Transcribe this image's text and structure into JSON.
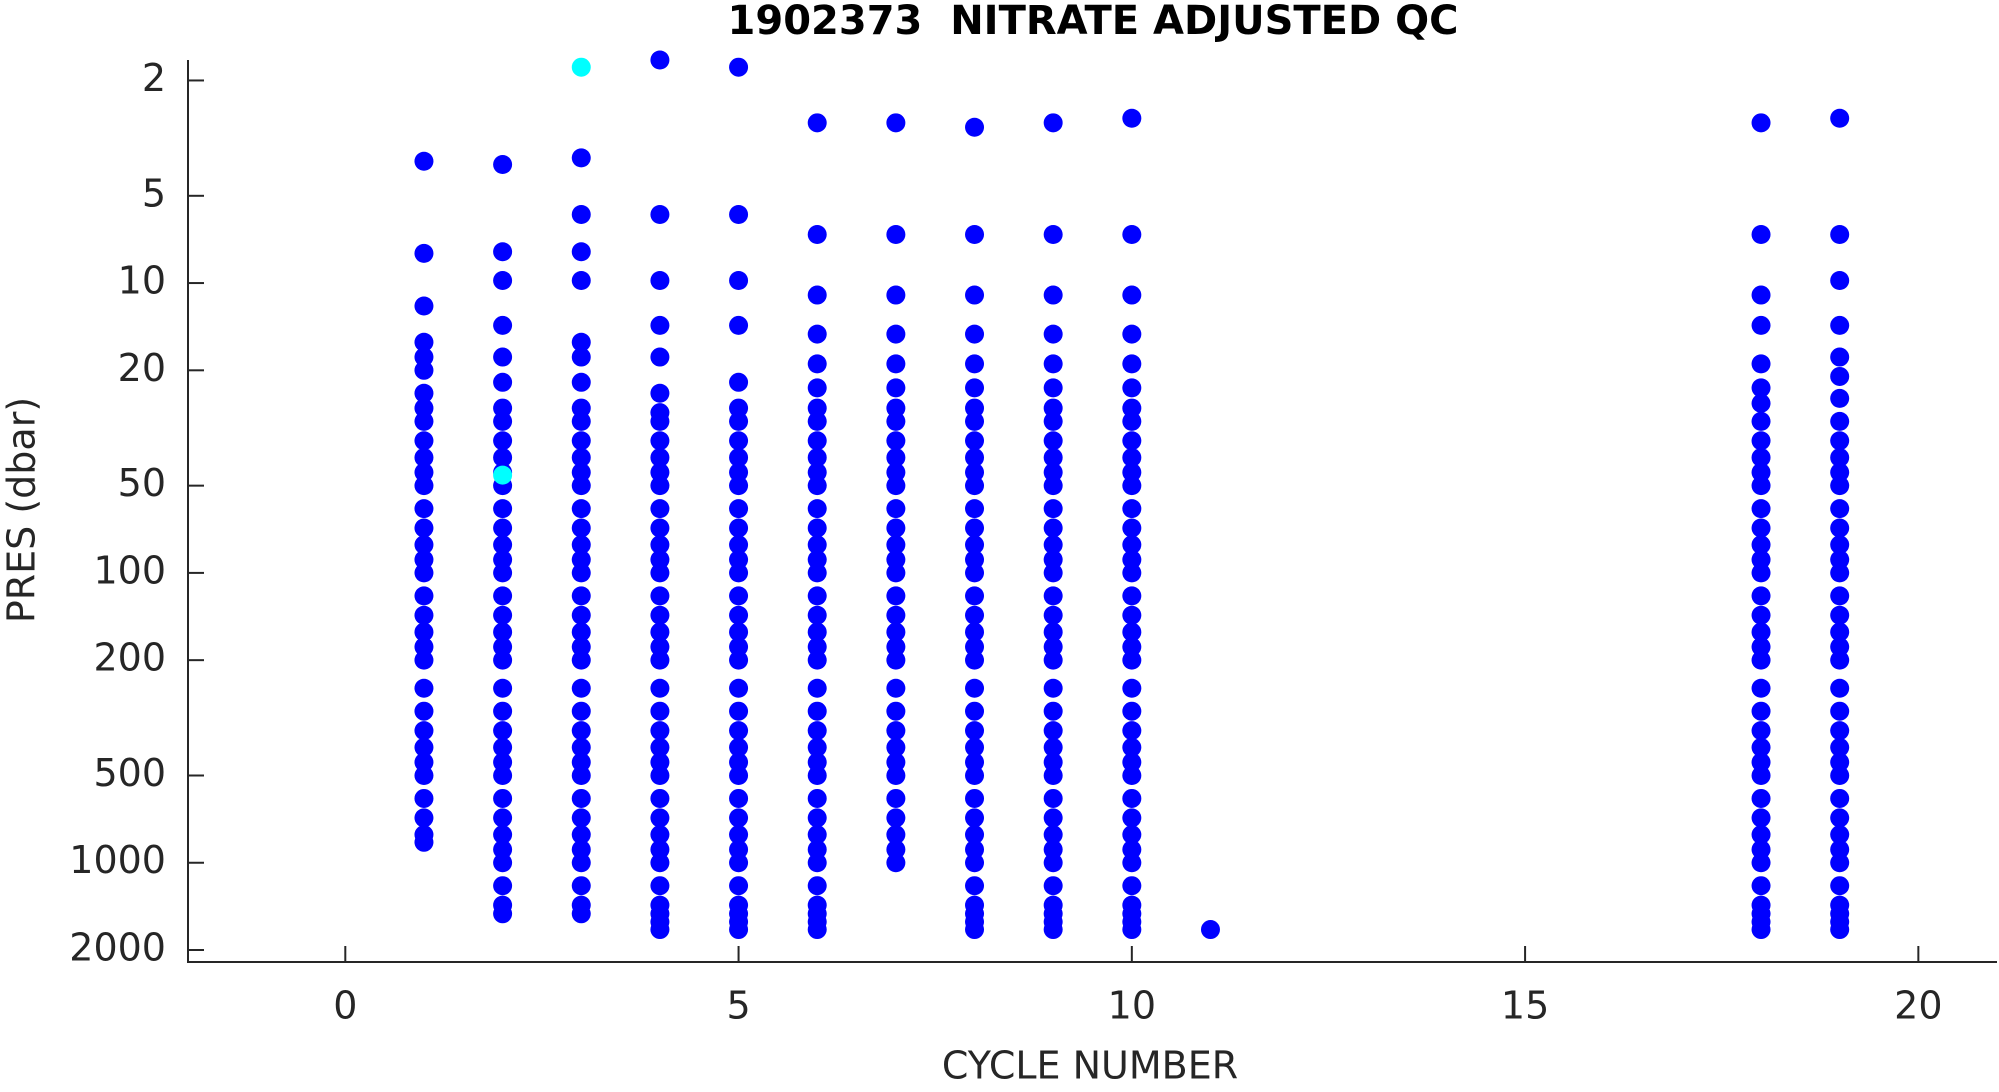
{
  "chart_data": {
    "type": "scatter",
    "title": "1902373  NITRATE ADJUSTED QC",
    "x_label": "CYCLE NUMBER",
    "y_label": "PRES (dbar)",
    "xlim": [
      -2,
      21
    ],
    "xticks": [
      0,
      5,
      10,
      15,
      20
    ],
    "ylim": [
      1.7,
      2200
    ],
    "yticks": [
      2,
      5,
      10,
      20,
      50,
      100,
      200,
      500,
      1000,
      2000
    ],
    "log_y": true,
    "y_reversed": true,
    "grid": false,
    "series": [
      {
        "color": "#0000ff",
        "x": [
          1,
          1,
          1,
          1,
          1,
          1,
          1,
          1,
          1,
          1,
          1,
          1,
          1,
          1,
          1,
          1,
          1,
          1,
          1,
          1,
          1,
          1,
          1,
          1,
          1,
          1,
          1,
          1,
          1,
          1,
          1,
          1,
          1
        ],
        "values": [
          3.8,
          7.9,
          12,
          16,
          18,
          20,
          24,
          27,
          30,
          35,
          40,
          45,
          50,
          60,
          70,
          80,
          90,
          100,
          120,
          140,
          160,
          180,
          200,
          250,
          300,
          350,
          400,
          450,
          500,
          600,
          700,
          800,
          850
        ]
      },
      {
        "color": "#0000ff",
        "x": [
          2,
          2,
          2,
          2,
          2,
          2,
          2,
          2,
          2,
          2,
          2,
          2,
          2,
          2,
          2,
          2,
          2,
          2,
          2,
          2,
          2,
          2,
          2,
          2,
          2,
          2,
          2,
          2,
          2,
          2,
          2,
          2,
          2,
          2,
          2,
          2
        ],
        "values": [
          3.9,
          7.8,
          9.8,
          14,
          18,
          22,
          27,
          30,
          35,
          40,
          45,
          50,
          60,
          70,
          80,
          90,
          100,
          120,
          140,
          160,
          180,
          200,
          250,
          300,
          350,
          400,
          450,
          500,
          600,
          700,
          800,
          900,
          1000,
          1200,
          1400,
          1500
        ]
      },
      {
        "color": "#0000ff",
        "x": [
          3,
          3,
          3,
          3,
          3,
          3,
          3,
          3,
          3,
          3,
          3,
          3,
          3,
          3,
          3,
          3,
          3,
          3,
          3,
          3,
          3,
          3,
          3,
          3,
          3,
          3,
          3,
          3,
          3,
          3,
          3,
          3,
          3,
          3,
          3,
          3,
          3
        ],
        "values": [
          3.7,
          5.8,
          7.8,
          9.8,
          16,
          18,
          22,
          27,
          30,
          35,
          40,
          45,
          50,
          60,
          70,
          80,
          90,
          100,
          120,
          140,
          160,
          180,
          200,
          250,
          300,
          350,
          400,
          450,
          500,
          600,
          700,
          800,
          900,
          1000,
          1200,
          1400,
          1500
        ]
      },
      {
        "color": "#0000ff",
        "x": [
          4,
          4,
          4,
          4,
          4,
          4,
          4,
          4,
          4,
          4,
          4,
          4,
          4,
          4,
          4,
          4,
          4,
          4,
          4,
          4,
          4,
          4,
          4,
          4,
          4,
          4,
          4,
          4,
          4,
          4,
          4,
          4,
          4,
          4,
          4,
          4,
          4,
          4
        ],
        "values": [
          1.7,
          5.8,
          9.8,
          14,
          18,
          24,
          28,
          30,
          35,
          40,
          45,
          50,
          60,
          70,
          80,
          90,
          100,
          120,
          140,
          160,
          180,
          200,
          250,
          300,
          350,
          400,
          450,
          500,
          600,
          700,
          800,
          900,
          1000,
          1200,
          1400,
          1500,
          1600,
          1700
        ]
      },
      {
        "color": "#0000ff",
        "x": [
          5,
          5,
          5,
          5,
          5,
          5,
          5,
          5,
          5,
          5,
          5,
          5,
          5,
          5,
          5,
          5,
          5,
          5,
          5,
          5,
          5,
          5,
          5,
          5,
          5,
          5,
          5,
          5,
          5,
          5,
          5,
          5,
          5,
          5,
          5,
          5,
          5
        ],
        "values": [
          1.8,
          5.8,
          9.8,
          14,
          22,
          27,
          30,
          35,
          40,
          45,
          50,
          60,
          70,
          80,
          90,
          100,
          120,
          140,
          160,
          180,
          200,
          250,
          300,
          350,
          400,
          450,
          500,
          600,
          700,
          800,
          900,
          1000,
          1200,
          1400,
          1500,
          1600,
          1700
        ]
      },
      {
        "color": "#0000ff",
        "x": [
          6,
          6,
          6,
          6,
          6,
          6,
          6,
          6,
          6,
          6,
          6,
          6,
          6,
          6,
          6,
          6,
          6,
          6,
          6,
          6,
          6,
          6,
          6,
          6,
          6,
          6,
          6,
          6,
          6,
          6,
          6,
          6,
          6,
          6,
          6,
          6,
          6,
          6
        ],
        "values": [
          2.8,
          6.8,
          11,
          15,
          19,
          23,
          27,
          30,
          35,
          40,
          45,
          50,
          60,
          70,
          80,
          90,
          100,
          120,
          140,
          160,
          180,
          200,
          250,
          300,
          350,
          400,
          450,
          500,
          600,
          700,
          800,
          900,
          1000,
          1200,
          1400,
          1500,
          1600,
          1700
        ]
      },
      {
        "color": "#0000ff",
        "x": [
          7,
          7,
          7,
          7,
          7,
          7,
          7,
          7,
          7,
          7,
          7,
          7,
          7,
          7,
          7,
          7,
          7,
          7,
          7,
          7,
          7,
          7,
          7,
          7,
          7,
          7,
          7,
          7,
          7,
          7,
          7,
          7,
          7
        ],
        "values": [
          2.8,
          6.8,
          11,
          15,
          19,
          23,
          27,
          30,
          35,
          40,
          45,
          50,
          60,
          70,
          80,
          90,
          100,
          120,
          140,
          160,
          180,
          200,
          250,
          300,
          350,
          400,
          450,
          500,
          600,
          700,
          800,
          900,
          1000
        ]
      },
      {
        "color": "#0000ff",
        "x": [
          8,
          8,
          8,
          8,
          8,
          8,
          8,
          8,
          8,
          8,
          8,
          8,
          8,
          8,
          8,
          8,
          8,
          8,
          8,
          8,
          8,
          8,
          8,
          8,
          8,
          8,
          8,
          8,
          8,
          8,
          8,
          8,
          8,
          8,
          8,
          8,
          8,
          8
        ],
        "values": [
          2.9,
          6.8,
          11,
          15,
          19,
          23,
          27,
          30,
          35,
          40,
          45,
          50,
          60,
          70,
          80,
          90,
          100,
          120,
          140,
          160,
          180,
          200,
          250,
          300,
          350,
          400,
          450,
          500,
          600,
          700,
          800,
          900,
          1000,
          1200,
          1400,
          1500,
          1600,
          1700
        ]
      },
      {
        "color": "#0000ff",
        "x": [
          9,
          9,
          9,
          9,
          9,
          9,
          9,
          9,
          9,
          9,
          9,
          9,
          9,
          9,
          9,
          9,
          9,
          9,
          9,
          9,
          9,
          9,
          9,
          9,
          9,
          9,
          9,
          9,
          9,
          9,
          9,
          9,
          9,
          9,
          9,
          9,
          9,
          9
        ],
        "values": [
          2.8,
          6.8,
          11,
          15,
          19,
          23,
          27,
          30,
          35,
          40,
          45,
          50,
          60,
          70,
          80,
          90,
          100,
          120,
          140,
          160,
          180,
          200,
          250,
          300,
          350,
          400,
          450,
          500,
          600,
          700,
          800,
          900,
          1000,
          1200,
          1400,
          1500,
          1600,
          1700
        ]
      },
      {
        "color": "#0000ff",
        "x": [
          10,
          10,
          10,
          10,
          10,
          10,
          10,
          10,
          10,
          10,
          10,
          10,
          10,
          10,
          10,
          10,
          10,
          10,
          10,
          10,
          10,
          10,
          10,
          10,
          10,
          10,
          10,
          10,
          10,
          10,
          10,
          10,
          10,
          10,
          10,
          10,
          10,
          10
        ],
        "values": [
          2.7,
          6.8,
          11,
          15,
          19,
          23,
          27,
          30,
          35,
          40,
          45,
          50,
          60,
          70,
          80,
          90,
          100,
          120,
          140,
          160,
          180,
          200,
          250,
          300,
          350,
          400,
          450,
          500,
          600,
          700,
          800,
          900,
          1000,
          1200,
          1400,
          1500,
          1600,
          1700
        ]
      },
      {
        "color": "#0000ff",
        "x": [
          11
        ],
        "values": [
          1700
        ]
      },
      {
        "color": "#0000ff",
        "x": [
          18,
          18,
          18,
          18,
          18,
          18,
          18,
          18,
          18,
          18,
          18,
          18,
          18,
          18,
          18,
          18,
          18,
          18,
          18,
          18,
          18,
          18,
          18,
          18,
          18,
          18,
          18,
          18,
          18,
          18,
          18,
          18,
          18,
          18,
          18,
          18,
          18,
          18
        ],
        "values": [
          2.8,
          6.8,
          11,
          14,
          19,
          23,
          26,
          30,
          35,
          40,
          45,
          50,
          60,
          70,
          80,
          90,
          100,
          120,
          140,
          160,
          180,
          200,
          250,
          300,
          350,
          400,
          450,
          500,
          600,
          700,
          800,
          900,
          1000,
          1200,
          1400,
          1500,
          1600,
          1700
        ]
      },
      {
        "color": "#0000ff",
        "x": [
          19,
          19,
          19,
          19,
          19,
          19,
          19,
          19,
          19,
          19,
          19,
          19,
          19,
          19,
          19,
          19,
          19,
          19,
          19,
          19,
          19,
          19,
          19,
          19,
          19,
          19,
          19,
          19,
          19,
          19,
          19,
          19,
          19,
          19,
          19,
          19,
          19,
          19
        ],
        "values": [
          2.7,
          6.8,
          9.8,
          14,
          18,
          21,
          25,
          30,
          35,
          40,
          45,
          50,
          60,
          70,
          80,
          90,
          100,
          120,
          140,
          160,
          180,
          200,
          250,
          300,
          350,
          400,
          450,
          500,
          600,
          700,
          800,
          900,
          1000,
          1200,
          1400,
          1500,
          1600,
          1700
        ]
      },
      {
        "color": "#00ffff",
        "x": [
          2,
          3
        ],
        "values": [
          46,
          1.8
        ]
      }
    ]
  }
}
